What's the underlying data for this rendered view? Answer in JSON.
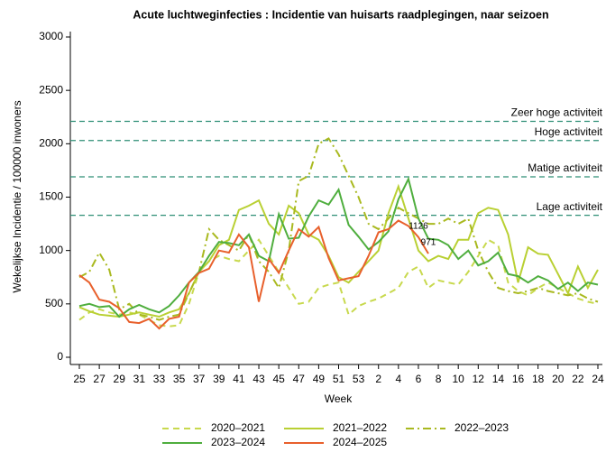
{
  "chart_data": {
    "type": "line",
    "title": "Acute luchtweginfecties : Incidentie van huisarts raadplegingen, naar seizoen",
    "x_label": "Week",
    "y_label": "Wekelijkse Incidentie / 100000 inwoners",
    "categories": [
      "25",
      null,
      "27",
      null,
      "29",
      null,
      "31",
      null,
      "33",
      null,
      "35",
      null,
      "37",
      null,
      "39",
      null,
      "41",
      null,
      "43",
      null,
      "45",
      null,
      "47",
      null,
      "49",
      null,
      "51",
      null,
      "53",
      null,
      "2",
      null,
      "4",
      null,
      "6",
      null,
      "8",
      null,
      "10",
      null,
      "12",
      null,
      "14",
      null,
      "16",
      null,
      "18",
      null,
      "20",
      null,
      "22",
      null,
      "24"
    ],
    "ylim": [
      0,
      3000
    ],
    "yticks": [
      0,
      500,
      1000,
      1500,
      2000,
      2500,
      3000
    ],
    "reference_lines": [
      {
        "label": "Zeer hoge activiteit",
        "value": 2210
      },
      {
        "label": "Hoge activiteit",
        "value": 2030
      },
      {
        "label": "Matige activiteit",
        "value": 1690
      },
      {
        "label": "Lage activiteit",
        "value": 1330
      }
    ],
    "reference_color": "#2f8f76",
    "series": [
      {
        "name": "2020–2021",
        "color": "#c8d94e",
        "style": "dashed",
        "values": [
          350,
          420,
          450,
          420,
          400,
          420,
          400,
          350,
          300,
          290,
          300,
          500,
          800,
          900,
          950,
          920,
          900,
          1000,
          1100,
          950,
          800,
          650,
          500,
          520,
          650,
          680,
          700,
          400,
          480,
          520,
          550,
          600,
          650,
          800,
          850,
          650,
          720,
          700,
          680,
          800,
          950,
          1100,
          1050,
          700,
          620,
          580,
          650,
          700,
          650,
          600,
          550,
          520,
          500
        ]
      },
      {
        "name": "2021–2022",
        "color": "#b9d033",
        "style": "solid",
        "values": [
          470,
          430,
          400,
          390,
          380,
          400,
          420,
          400,
          380,
          420,
          450,
          600,
          800,
          900,
          1050,
          1100,
          1380,
          1420,
          1470,
          1250,
          1150,
          1420,
          1350,
          1150,
          1100,
          950,
          750,
          700,
          800,
          900,
          1000,
          1350,
          1600,
          1300,
          1000,
          900,
          950,
          920,
          1100,
          1100,
          1350,
          1400,
          1380,
          1150,
          700,
          1030,
          970,
          960,
          780,
          600,
          850,
          650,
          820
        ]
      },
      {
        "name": "2022–2023",
        "color": "#a9b91f",
        "style": "dashdot",
        "values": [
          750,
          800,
          980,
          820,
          450,
          500,
          400,
          380,
          350,
          380,
          400,
          600,
          800,
          1200,
          1100,
          1050,
          1000,
          1150,
          900,
          800,
          650,
          1000,
          1650,
          1700,
          2000,
          2050,
          1900,
          1700,
          1500,
          1250,
          1200,
          1300,
          1400,
          1350,
          1300,
          1250,
          1250,
          1300,
          1250,
          1300,
          1000,
          800,
          650,
          620,
          600,
          620,
          650,
          620,
          600,
          580,
          600,
          550,
          520
        ]
      },
      {
        "name": "2023–2024",
        "color": "#4fae3e",
        "style": "solid",
        "values": [
          480,
          500,
          470,
          480,
          380,
          450,
          490,
          450,
          420,
          480,
          580,
          700,
          800,
          950,
          1080,
          1070,
          1050,
          1150,
          950,
          900,
          1340,
          1110,
          1120,
          1320,
          1470,
          1430,
          1570,
          1240,
          1130,
          1010,
          1080,
          1180,
          1480,
          1670,
          1300,
          1110,
          1100,
          1050,
          920,
          1000,
          860,
          900,
          980,
          780,
          760,
          700,
          760,
          720,
          640,
          700,
          620,
          700,
          680
        ]
      },
      {
        "name": "2024–2025",
        "color": "#e8602c",
        "style": "solid",
        "values": [
          770,
          700,
          540,
          520,
          460,
          330,
          320,
          360,
          270,
          360,
          380,
          700,
          790,
          830,
          1000,
          980,
          1150,
          1030,
          520,
          920,
          790,
          1000,
          1200,
          1130,
          1220,
          930,
          720,
          740,
          760,
          950,
          1170,
          1200,
          1280,
          1230,
          1126,
          971,
          null,
          null,
          null,
          null,
          null,
          null,
          null,
          null,
          null,
          null,
          null,
          null,
          null,
          null,
          null,
          null,
          null
        ],
        "value_labels": [
          null,
          null,
          null,
          null,
          null,
          null,
          null,
          null,
          null,
          null,
          null,
          null,
          null,
          null,
          null,
          null,
          null,
          null,
          null,
          null,
          null,
          null,
          null,
          null,
          null,
          null,
          null,
          null,
          null,
          null,
          null,
          null,
          null,
          null,
          "1126",
          "971",
          null,
          null,
          null,
          null,
          null,
          null,
          null,
          null,
          null,
          null,
          null,
          null,
          null,
          null,
          null,
          null,
          null
        ]
      }
    ]
  }
}
